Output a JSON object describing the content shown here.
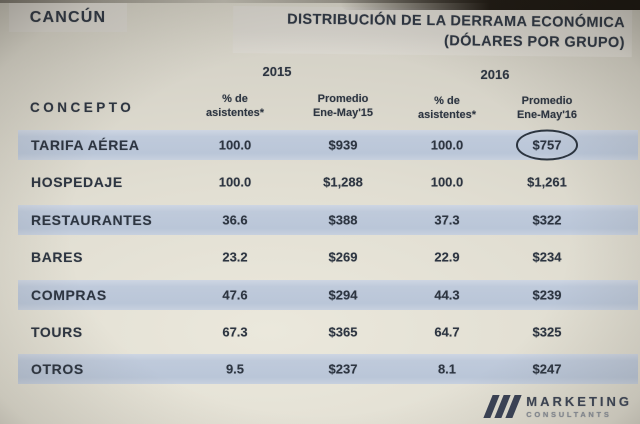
{
  "slide": {
    "location_label": "CANCÚN",
    "title_line1": "DISTRIBUCIÓN DE LA DERRAMA ECONÓMICA",
    "title_line2": "(DÓLARES POR GRUPO)"
  },
  "table": {
    "concept_header": "CONCEPTO",
    "groups": [
      {
        "year": "2015",
        "pct_line1": "% de",
        "pct_line2": "asistentes*",
        "avg_line1": "Promedio",
        "avg_line2": "Ene-May'15"
      },
      {
        "year": "2016",
        "pct_line1": "% de",
        "pct_line2": "asistentes*",
        "avg_line1": "Promedio",
        "avg_line2": "Ene-May'16"
      }
    ],
    "rows": [
      {
        "label": "TARIFA AÉREA",
        "pct_2015": "100.0",
        "avg_2015": "$939",
        "pct_2016": "100.0",
        "avg_2016": "$757",
        "highlight": true,
        "circled": true
      },
      {
        "label": "HOSPEDAJE",
        "pct_2015": "100.0",
        "avg_2015": "$1,288",
        "pct_2016": "100.0",
        "avg_2016": "$1,261",
        "highlight": false,
        "circled": false
      },
      {
        "label": "RESTAURANTES",
        "pct_2015": "36.6",
        "avg_2015": "$388",
        "pct_2016": "37.3",
        "avg_2016": "$322",
        "highlight": true,
        "circled": false
      },
      {
        "label": "BARES",
        "pct_2015": "23.2",
        "avg_2015": "$269",
        "pct_2016": "22.9",
        "avg_2016": "$234",
        "highlight": false,
        "circled": false
      },
      {
        "label": "COMPRAS",
        "pct_2015": "47.6",
        "avg_2015": "$294",
        "pct_2016": "44.3",
        "avg_2016": "$239",
        "highlight": true,
        "circled": false
      },
      {
        "label": "TOURS",
        "pct_2015": "67.3",
        "avg_2015": "$365",
        "pct_2016": "64.7",
        "avg_2016": "$325",
        "highlight": false,
        "circled": false
      },
      {
        "label": "OTROS",
        "pct_2015": "9.5",
        "avg_2015": "$237",
        "pct_2016": "8.1",
        "avg_2016": "$247",
        "highlight": true,
        "circled": false
      }
    ]
  },
  "logo": {
    "name_line1": "MARKETING",
    "name_line2": "CONSULTANTS"
  },
  "colors": {
    "row_highlight_blue": "#bcc8da",
    "band_gray": "#d2cfc8",
    "text_navy": "#2d3541",
    "photo_background": "#e1ded2",
    "logo_navy": "#3a4153"
  },
  "chart_data": {
    "type": "table",
    "title": "DISTRIBUCIÓN DE LA DERRAMA ECONÓMICA (DÓLARES POR GRUPO)",
    "location": "CANCÚN",
    "categories": [
      "TARIFA AÉREA",
      "HOSPEDAJE",
      "RESTAURANTES",
      "BARES",
      "COMPRAS",
      "TOURS",
      "OTROS"
    ],
    "series": [
      {
        "name": "2015 % de asistentes",
        "values": [
          100.0,
          100.0,
          36.6,
          23.2,
          47.6,
          67.3,
          9.5
        ]
      },
      {
        "name": "2015 Promedio Ene-May'15 (USD)",
        "values": [
          939,
          1288,
          388,
          269,
          294,
          365,
          237
        ]
      },
      {
        "name": "2016 % de asistentes",
        "values": [
          100.0,
          100.0,
          37.3,
          22.9,
          44.3,
          64.7,
          8.1
        ]
      },
      {
        "name": "2016 Promedio Ene-May'16 (USD)",
        "values": [
          757,
          1261,
          322,
          234,
          239,
          325,
          247
        ]
      }
    ],
    "annotations": [
      {
        "text": "value circled for emphasis",
        "target": "TARIFA AÉREA / 2016 Promedio Ene-May'16 = $757"
      }
    ],
    "legend_position": "none",
    "grid": false
  }
}
